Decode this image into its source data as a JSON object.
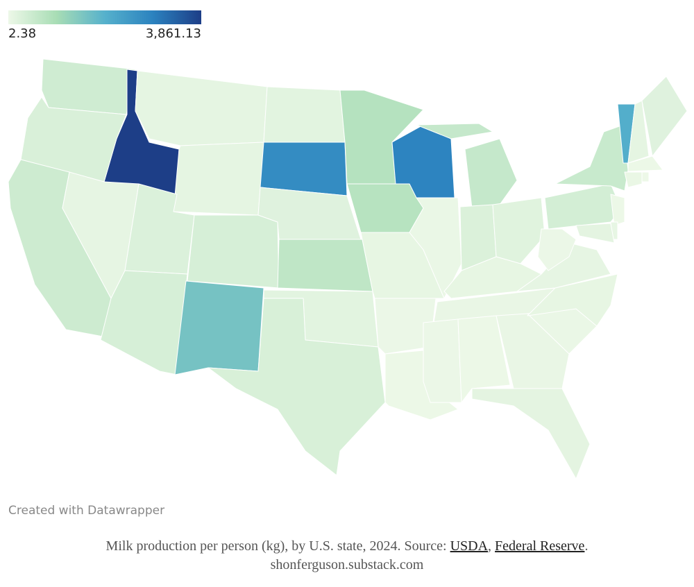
{
  "chart_data": {
    "type": "choropleth",
    "values": [
      420,
      3861.13,
      280,
      120,
      110,
      450,
      100,
      250,
      330,
      330,
      1550,
      150,
      2700,
      200,
      650,
      150,
      300,
      780,
      760,
      90,
      30,
      20,
      2850,
      40,
      560,
      260,
      190,
      90,
      60,
      30,
      15,
      60,
      130,
      40,
      90,
      100,
      30,
      360,
      520,
      2000,
      120,
      200,
      20,
      50,
      2.38,
      15,
      80,
      130
    ],
    "clim": [
      2.38,
      3861.13
    ],
    "cticks": [
      2.38,
      {
        "value": 3861.13,
        "label": "3,861.13"
      }
    ],
    "colorscale": [
      "#edf8e8",
      "#a8ddb5",
      "#56b1cc",
      "#2b82bf",
      "#1d3e87"
    ]
  },
  "credit": "Created with Datawrapper",
  "caption": [
    "Milk production per person (kg), by U.S. state, 2024. Source: ",
    "USDA",
    ", ",
    "Federal Reserve",
    "."
  ],
  "byline": "shonferguson.substack.com"
}
